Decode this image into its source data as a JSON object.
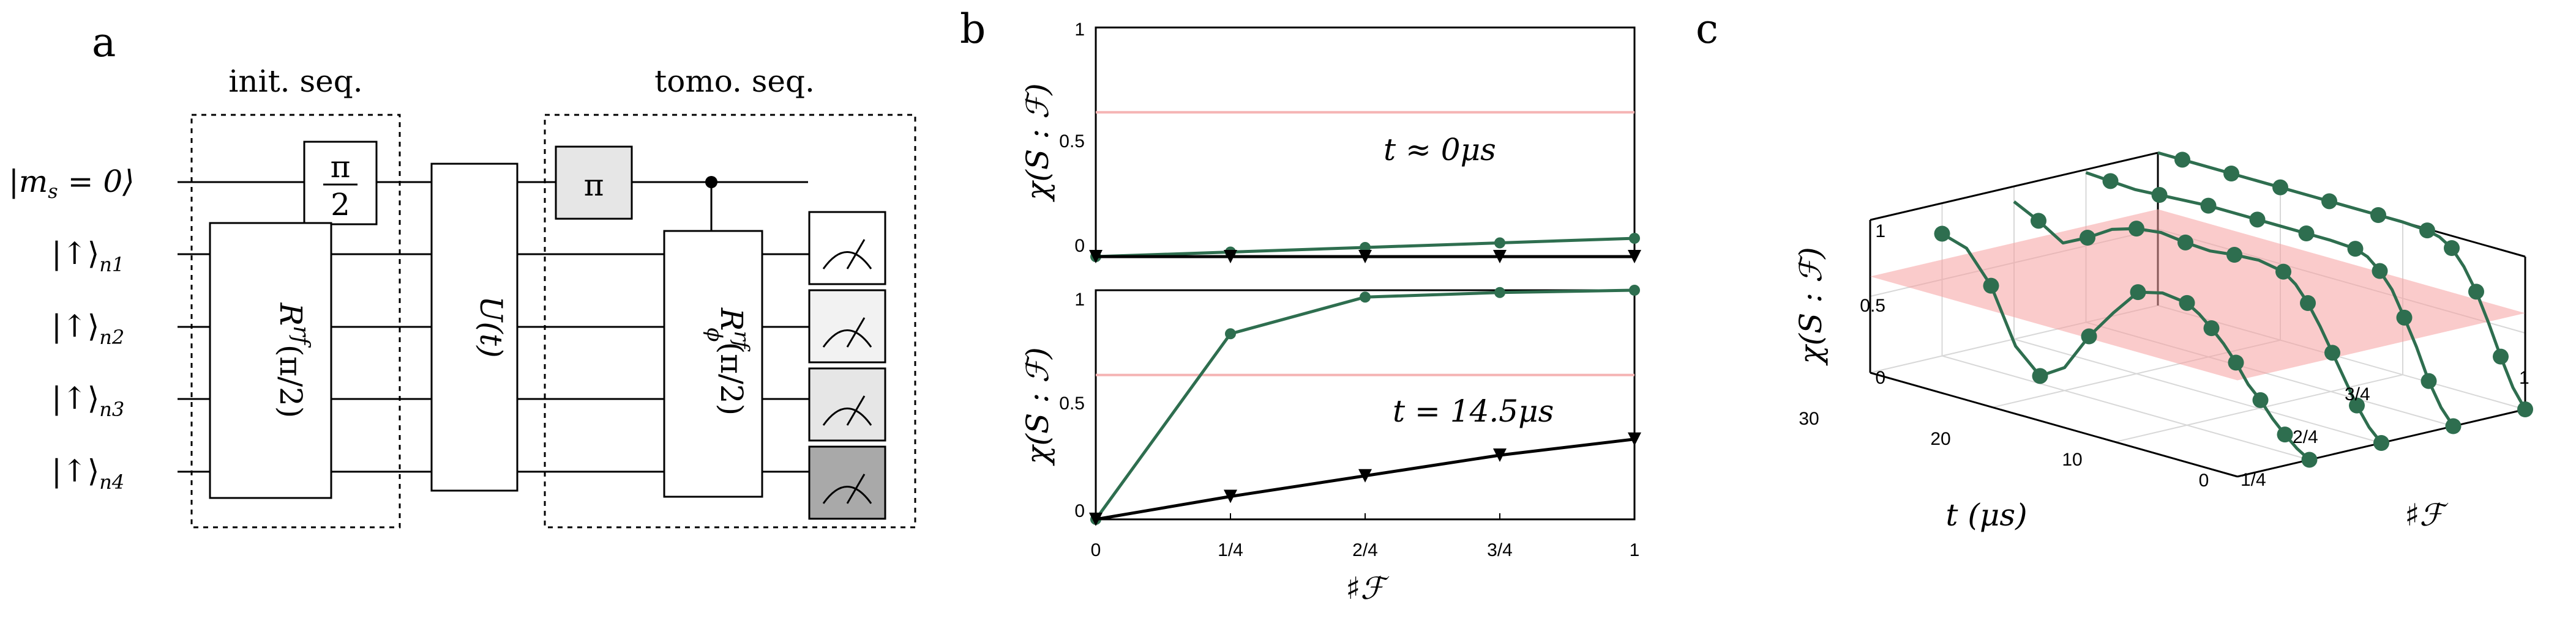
{
  "figure": {
    "panels": {
      "a": "a",
      "b": "b",
      "c": "c"
    }
  },
  "circuit": {
    "init_label": "init. seq.",
    "tomo_label": "tomo. seq.",
    "wires": [
      "|m",
      "s",
      " = 0⟩",
      "|↑⟩",
      "n1",
      "|↑⟩",
      "n2",
      "|↑⟩",
      "n3",
      "|↑⟩",
      "n4"
    ],
    "wire_main": "|m",
    "wire_main_sub": "s",
    "wire_main_tail": " = 0⟩",
    "qubit_ket": "|↑⟩",
    "qubit_subs": [
      "n1",
      "n2",
      "n3",
      "n4"
    ],
    "gate_pi_half_num": "π",
    "gate_pi_half_den": "2",
    "gate_pi": "π",
    "gate_init_rot": "R",
    "gate_init_rot_sup": "rf",
    "gate_init_rot_arg": "(π/2)",
    "gate_U": "U(t)",
    "gate_tomo_rot": "R",
    "gate_tomo_rot_sup": "rf",
    "gate_tomo_rot_sub": "ϕ",
    "gate_tomo_rot_arg": "(π/2)"
  },
  "chart_data": [
    {
      "type": "line",
      "panel": "b-top",
      "annotation": "t ≈ 0μs",
      "ylabel": "χ(S : ℱ)",
      "ylim": [
        0,
        1
      ],
      "yticks": [
        "0",
        "0.5",
        "1"
      ],
      "x": [
        0,
        0.25,
        0.5,
        0.75,
        1
      ],
      "threshold": 0.63,
      "series": [
        {
          "name": "green",
          "color": "#2e6e4f",
          "values": [
            0.0,
            0.02,
            0.04,
            0.06,
            0.08
          ]
        },
        {
          "name": "black",
          "color": "#000000",
          "values": [
            0.0,
            0.0,
            0.0,
            0.0,
            0.0
          ]
        }
      ]
    },
    {
      "type": "line",
      "panel": "b-bottom",
      "annotation": "t = 14.5μs",
      "ylabel": "χ(S : ℱ)",
      "xlabel": "♯ℱ",
      "ylim": [
        0,
        1
      ],
      "yticks": [
        "0",
        "0.5",
        "1"
      ],
      "xticks": [
        "0",
        "1/4",
        "2/4",
        "3/4",
        "1"
      ],
      "x": [
        0,
        0.25,
        0.5,
        0.75,
        1
      ],
      "threshold": 0.63,
      "series": [
        {
          "name": "green",
          "color": "#2e6e4f",
          "values": [
            0.0,
            0.81,
            0.97,
            0.99,
            1.0
          ]
        },
        {
          "name": "black",
          "color": "#000000",
          "values": [
            0.0,
            0.1,
            0.19,
            0.28,
            0.35
          ]
        }
      ]
    },
    {
      "type": "line",
      "panel": "c",
      "zlabel": "χ(S : ℱ)",
      "xlabel": "t (μs)",
      "ylabel": "♯ℱ",
      "zticks": [
        "0",
        "0.5",
        "1"
      ],
      "tticks": [
        "30",
        "20",
        "10",
        "0"
      ],
      "fticks": [
        "1/4",
        "2/4",
        "3/4",
        "1"
      ],
      "plane_value": 0.63,
      "series": [
        {
          "name": "1/4",
          "f": 0.25,
          "t": [
            0,
            1,
            2,
            3,
            4,
            5,
            6,
            7,
            8,
            9,
            10,
            12,
            14,
            16,
            18,
            20,
            22,
            24,
            26,
            28,
            30
          ],
          "values": [
            0.0,
            0.05,
            0.12,
            0.2,
            0.3,
            0.38,
            0.5,
            0.6,
            0.68,
            0.75,
            0.8,
            0.82,
            0.78,
            0.6,
            0.4,
            0.15,
            0.05,
            0.2,
            0.55,
            0.75,
            0.8
          ]
        },
        {
          "name": "2/4",
          "f": 0.5,
          "t": [
            0,
            1,
            2,
            3,
            4,
            5,
            6,
            7,
            8,
            10,
            12,
            14,
            16,
            18,
            20,
            22,
            24,
            26,
            28,
            30
          ],
          "values": [
            0.0,
            0.08,
            0.2,
            0.35,
            0.5,
            0.65,
            0.78,
            0.88,
            0.94,
            0.97,
            0.96,
            0.94,
            0.95,
            0.97,
            0.95,
            0.9,
            0.8,
            0.72,
            0.82,
            0.9
          ]
        },
        {
          "name": "3/4",
          "f": 0.75,
          "t": [
            0,
            1,
            2,
            3,
            4,
            5,
            6,
            7,
            8,
            10,
            12,
            14,
            16,
            18,
            20,
            22,
            24,
            26,
            28,
            30
          ],
          "values": [
            0.0,
            0.1,
            0.25,
            0.45,
            0.62,
            0.78,
            0.88,
            0.95,
            0.98,
            0.99,
            0.99,
            0.99,
            0.99,
            0.99,
            0.99,
            0.98,
            0.97,
            0.96,
            0.97,
            0.98
          ]
        },
        {
          "name": "1",
          "f": 1.0,
          "t": [
            0,
            1,
            2,
            3,
            4,
            5,
            6,
            7,
            8,
            10,
            12,
            14,
            16,
            18,
            20,
            22,
            24,
            26,
            28,
            30
          ],
          "values": [
            0.0,
            0.12,
            0.3,
            0.5,
            0.68,
            0.82,
            0.92,
            0.97,
            0.99,
            1.0,
            1.0,
            1.0,
            1.0,
            1.0,
            1.0,
            1.0,
            1.0,
            1.0,
            1.0,
            1.0
          ]
        }
      ]
    }
  ],
  "colors": {
    "accent": "#2e6e4f",
    "threshold": "#f5b4b4",
    "plane": "#f5a0a0",
    "gate_fill": "#e6e6e6",
    "gate_dark": "#a9a9a9"
  }
}
